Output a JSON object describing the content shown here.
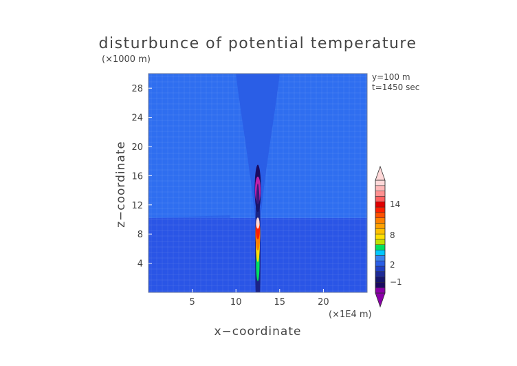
{
  "chart_data": {
    "type": "heatmap",
    "title": "disturbunce of potential temperature",
    "ylabel": "z−coordinate",
    "xlabel": "x−coordinate",
    "y_unit": "(×1000 m)",
    "x_unit": "(×1E4 m)",
    "annotations": [
      "y=100 m",
      "t=1450 sec"
    ],
    "xlim": [
      0,
      25
    ],
    "ylim": [
      0,
      30
    ],
    "x_ticks": [
      5,
      10,
      15,
      20
    ],
    "y_ticks": [
      4,
      8,
      12,
      16,
      20,
      24,
      28
    ],
    "x_tick_labels": [
      "5",
      "10",
      "15",
      "20"
    ],
    "y_tick_labels": [
      "4",
      "8",
      "12",
      "16",
      "20",
      "24",
      "28"
    ],
    "colorbar": {
      "tick_labels": [
        "14",
        "8",
        "2",
        "−1"
      ],
      "colors": [
        "#8a00a8",
        "#1a0a60",
        "#16166e",
        "#1e2a96",
        "#2040c2",
        "#2a5ee6",
        "#3a82f0",
        "#00c8ff",
        "#00e060",
        "#c0e000",
        "#ffe000",
        "#ffc000",
        "#ffa000",
        "#ff8000",
        "#ff5000",
        "#ff2000",
        "#e00000",
        "#ff6060",
        "#ff9090",
        "#ffb8b8",
        "#ffd8d8"
      ]
    },
    "features": {
      "background_lower": {
        "z_range": [
          0,
          10.2
        ],
        "color": "#2a55e6"
      },
      "background_upper": {
        "z_range": [
          10.2,
          30
        ],
        "color": "#2f6ef0"
      },
      "plume_cone": {
        "apex": [
          12.5,
          10.2
        ],
        "top_x_range": [
          10,
          15
        ],
        "color": "#2a5ee6"
      },
      "column_x": 12.5,
      "column_z_range": [
        0,
        17.5
      ],
      "core_max": 14
    }
  }
}
